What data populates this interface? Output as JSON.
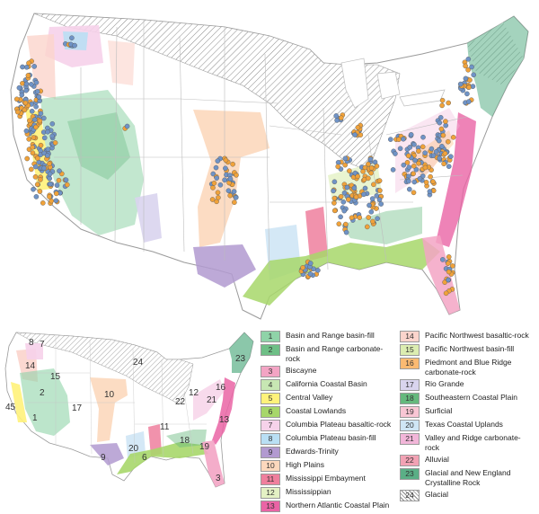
{
  "legend": {
    "items": [
      {
        "num": "1",
        "label": "Basin and Range basin-fill",
        "color": "#8fd3a8"
      },
      {
        "num": "2",
        "label": "Basin and Range carbonate-rock",
        "color": "#6ebf86"
      },
      {
        "num": "3",
        "label": "Biscayne",
        "color": "#f3a4c4"
      },
      {
        "num": "4",
        "label": "California Coastal Basin",
        "color": "#c7e7b3"
      },
      {
        "num": "5",
        "label": "Central Valley",
        "color": "#fff27a"
      },
      {
        "num": "6",
        "label": "Coastal Lowlands",
        "color": "#a7d76a"
      },
      {
        "num": "7",
        "label": "Columbia Plateau basaltic-rock",
        "color": "#f6d2ea"
      },
      {
        "num": "8",
        "label": "Columbia Plateau basin-fill",
        "color": "#b9dff4"
      },
      {
        "num": "9",
        "label": "Edwards-Trinity",
        "color": "#b29ad0"
      },
      {
        "num": "10",
        "label": "High Plains",
        "color": "#fcd8bd"
      },
      {
        "num": "11",
        "label": "Mississippi Embayment",
        "color": "#ef7f9d"
      },
      {
        "num": "12",
        "label": "Mississippian",
        "color": "#e4f1c4"
      },
      {
        "num": "13",
        "label": "Northern Atlantic Coastal Plain",
        "color": "#ea64a5"
      },
      {
        "num": "14",
        "label": "Pacific Northwest basaltic-rock",
        "color": "#fbd4cc"
      },
      {
        "num": "15",
        "label": "Pacific Northwest basin-fill",
        "color": "#dcedb1"
      },
      {
        "num": "16",
        "label": "Piedmont and Blue Ridge carbonate-rock",
        "color": "#fbba72"
      },
      {
        "num": "17",
        "label": "Rio Grande",
        "color": "#d9d4ee"
      },
      {
        "num": "18",
        "label": "Southeastern Coastal Plain",
        "color": "#65b97d"
      },
      {
        "num": "19",
        "label": "Surficial",
        "color": "#f9c6d4"
      },
      {
        "num": "20",
        "label": "Texas Coastal Uplands",
        "color": "#cfe6f5"
      },
      {
        "num": "21",
        "label": "Valley and Ridge carbonate-rock",
        "color": "#f2b6d9"
      },
      {
        "num": "22",
        "label": "Alluvial",
        "color": "#f2a2b4"
      },
      {
        "num": "23",
        "label": "Glacial and New England Crystalline Rock",
        "color": "#5aaf86"
      },
      {
        "num": "24",
        "label": "Glacial",
        "color": "hatch"
      }
    ]
  },
  "inset": {
    "numbers": [
      "1",
      "2",
      "3",
      "4",
      "5",
      "6",
      "7",
      "8",
      "9",
      "10",
      "11",
      "12",
      "13",
      "14",
      "15",
      "16",
      "17",
      "18",
      "19",
      "20",
      "21",
      "22",
      "23",
      "24"
    ]
  },
  "wells": {
    "colors": {
      "blue": "#6f93c6",
      "orange": "#f0a23a"
    }
  }
}
